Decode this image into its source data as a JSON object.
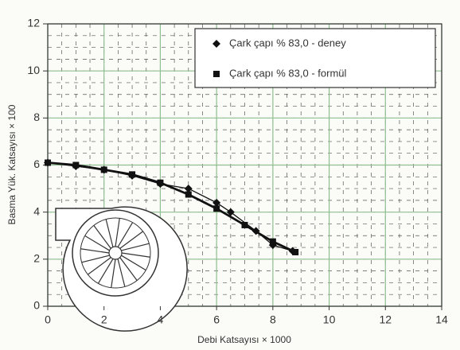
{
  "chart_data": {
    "type": "line",
    "xlabel": "Debi Katsayısı × 1000",
    "ylabel": "Basma Yük. Katsayısı × 100",
    "xlim": [
      0,
      14
    ],
    "xticks": [
      0,
      2,
      4,
      6,
      8,
      10,
      12,
      14
    ],
    "ylim": [
      0,
      12
    ],
    "yticks": [
      0,
      2,
      4,
      6,
      8,
      10,
      12
    ],
    "grid": true,
    "legend": "upper right",
    "series": [
      {
        "name": "Çark çapı % 83,0 -  deney",
        "color": "#111111",
        "marker": "diamond",
        "x": [
          0,
          1,
          2,
          3,
          4,
          5,
          6,
          6.5,
          7.4,
          8,
          8.7
        ],
        "values": [
          6.1,
          5.95,
          5.8,
          5.55,
          5.2,
          5.0,
          4.4,
          4.0,
          3.2,
          2.6,
          2.35
        ]
      },
      {
        "name": "Çark çapı % 83,0 - formül",
        "color": "#111111",
        "marker": "square",
        "x": [
          0,
          1,
          2,
          3,
          4,
          5,
          6,
          7,
          8,
          8.8
        ],
        "values": [
          6.1,
          6.0,
          5.8,
          5.6,
          5.25,
          4.75,
          4.15,
          3.45,
          2.75,
          2.3
        ]
      }
    ]
  }
}
